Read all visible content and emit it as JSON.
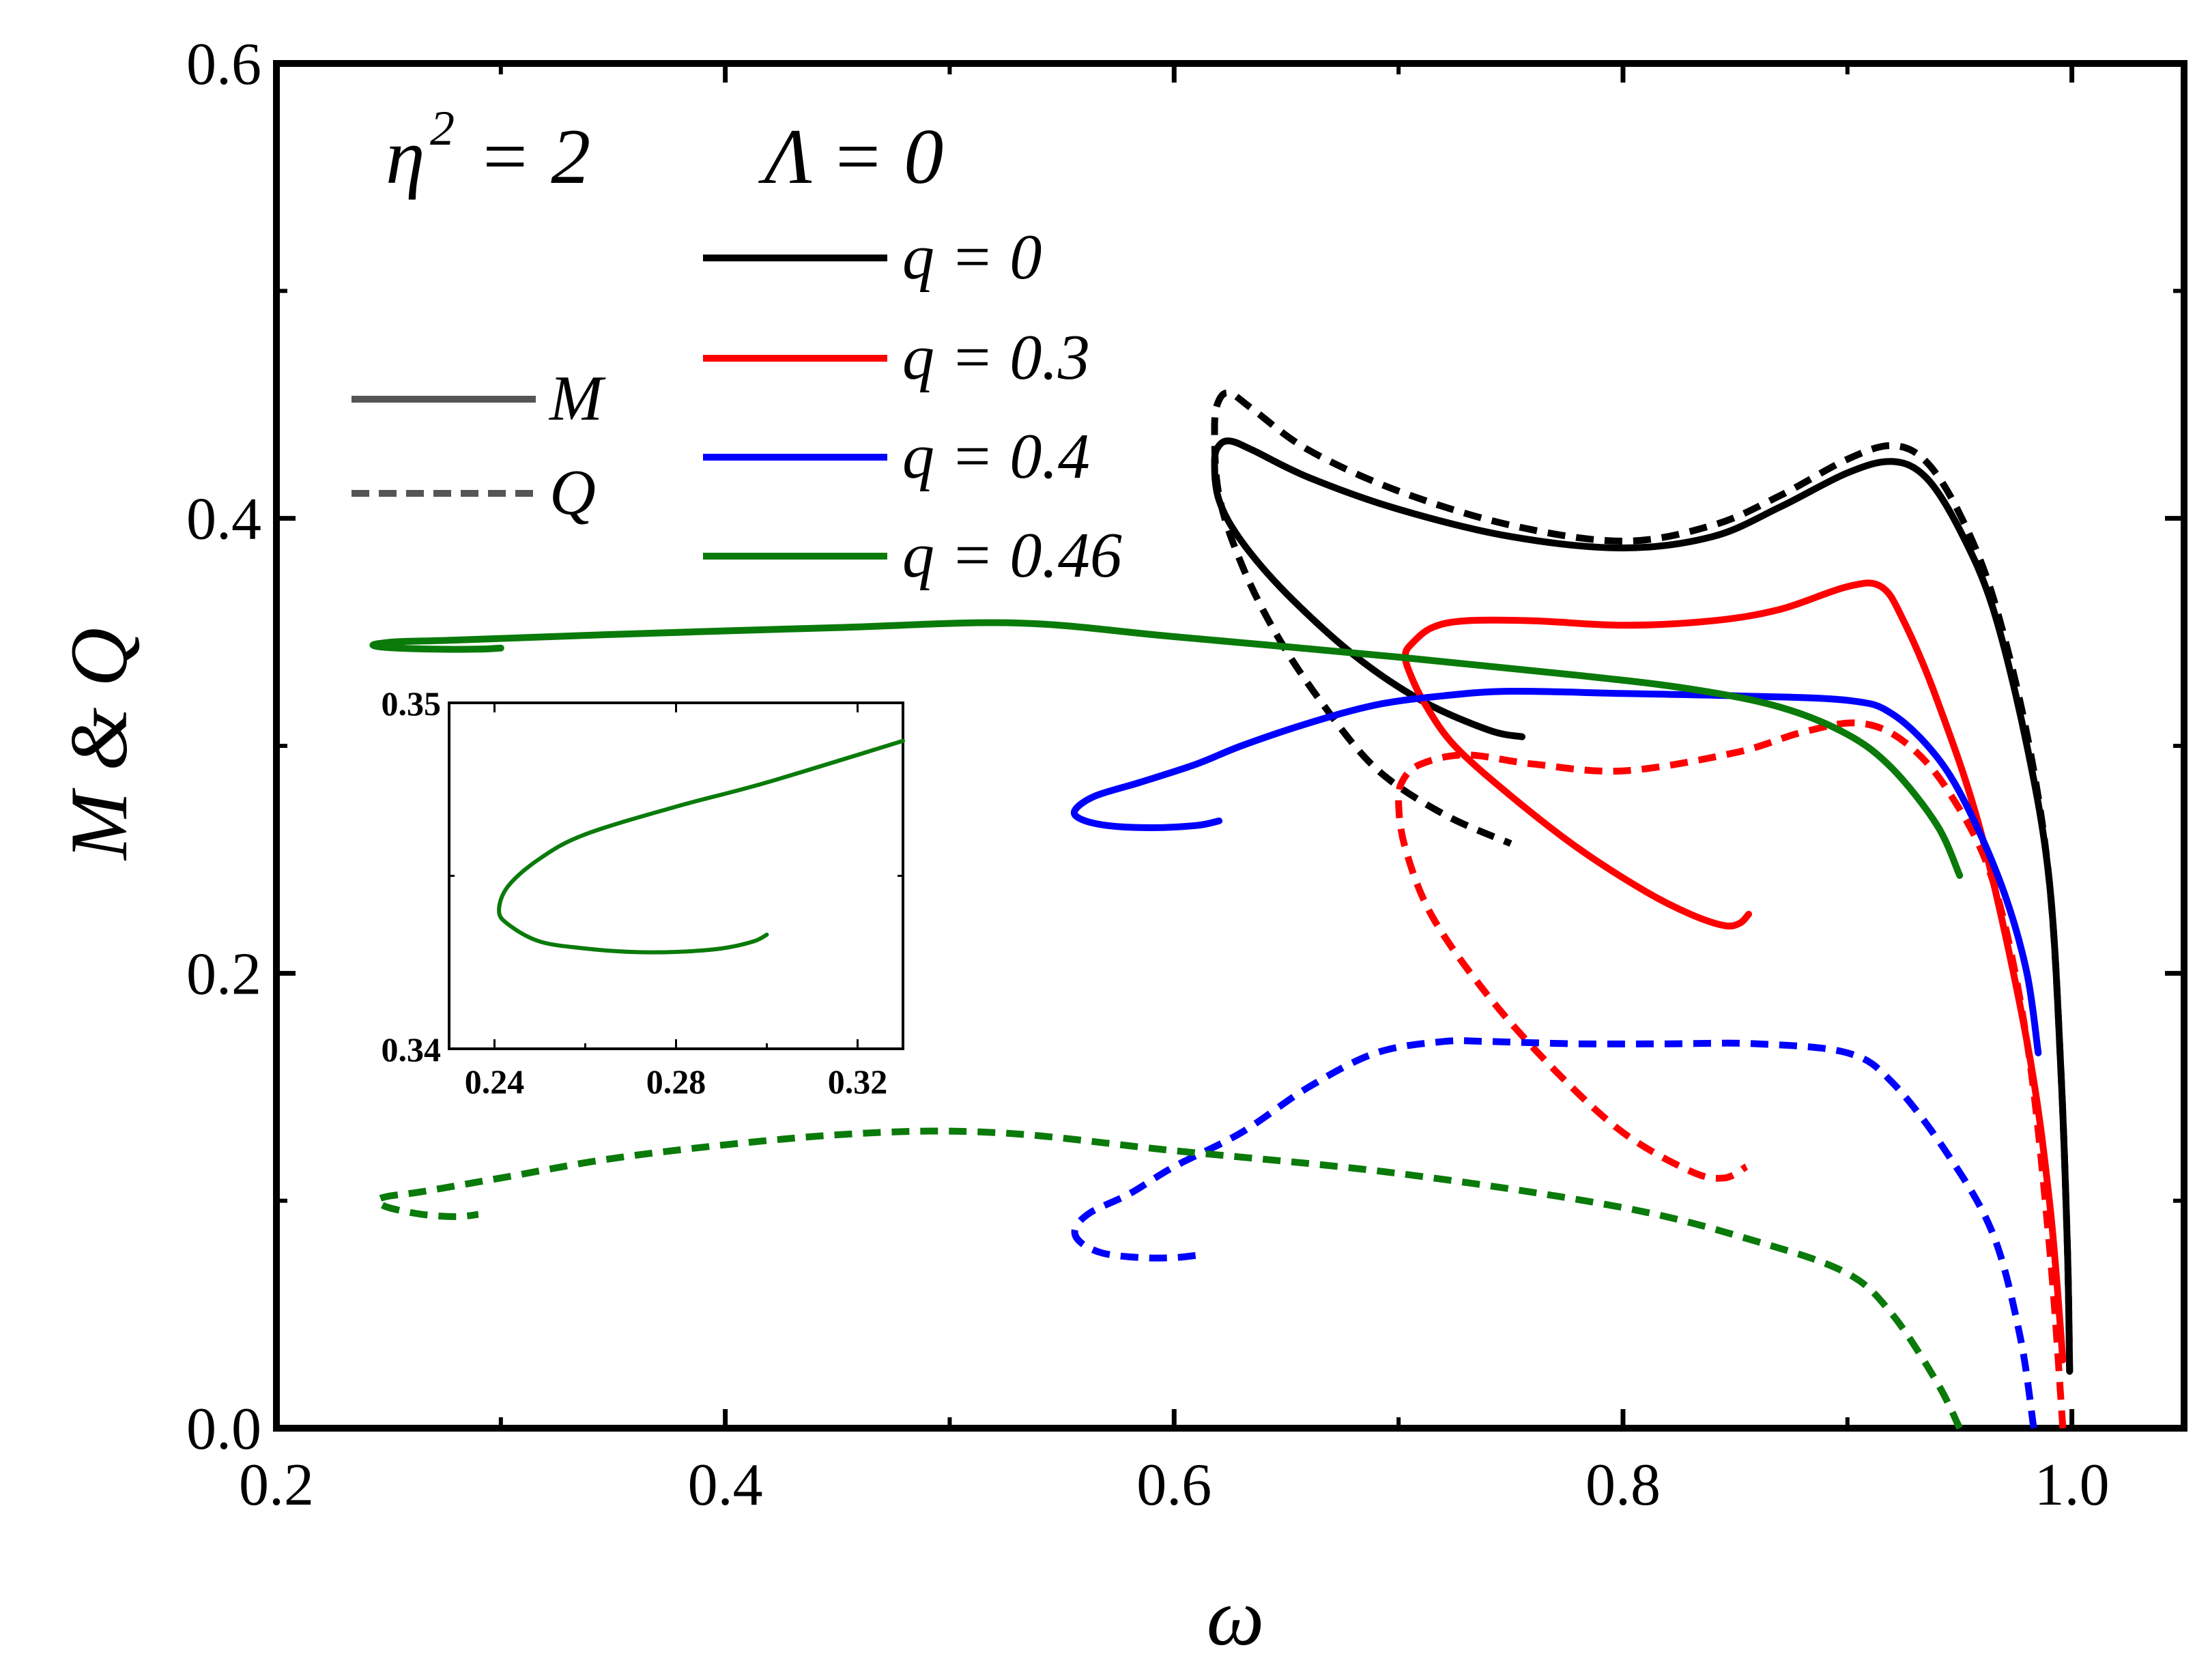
{
  "chart_data": [
    {
      "type": "line",
      "title": "",
      "xlabel": "ω",
      "ylabel": "M & Q",
      "xlim": [
        0.2,
        1.05
      ],
      "ylim": [
        0.0,
        0.6
      ],
      "xticks": [
        "0.2",
        "0.4",
        "0.6",
        "0.8",
        "1.0"
      ],
      "yticks": [
        "0.0",
        "0.2",
        "0.4",
        "0.6"
      ],
      "xtick_values": [
        0.2,
        0.4,
        0.6,
        0.8,
        1.0
      ],
      "ytick_values": [
        0.0,
        0.2,
        0.4,
        0.6
      ],
      "annotation": {
        "eta": "η",
        "eta_exp": "2",
        "eta_value": "= 2",
        "lambda": "Λ = 0"
      },
      "style_legend": [
        {
          "label": "M",
          "style": "solid"
        },
        {
          "label": "Q",
          "style": "dashed"
        }
      ],
      "legend": [
        {
          "label": "q = 0",
          "color": "#000000"
        },
        {
          "label": "q = 0.3",
          "color": "#ff0000"
        },
        {
          "label": "q = 0.4",
          "color": "#0000ff"
        },
        {
          "label": "q = 0.46",
          "color": "#0a7a0a"
        }
      ],
      "legend_style_color": "#555555",
      "series": [
        {
          "name": "M, q = 0",
          "q": "0",
          "quantity": "M",
          "color": "#000000",
          "dashed": false,
          "x": [
            0.999,
            0.998,
            0.995,
            0.99,
            0.98,
            0.965,
            0.95,
            0.935,
            0.92,
            0.9,
            0.87,
            0.84,
            0.8,
            0.75,
            0.7,
            0.66,
            0.635,
            0.625,
            0.62,
            0.618,
            0.62,
            0.63,
            0.65,
            0.68,
            0.71,
            0.74,
            0.755
          ],
          "y": [
            0.025,
            0.08,
            0.16,
            0.24,
            0.3,
            0.36,
            0.395,
            0.418,
            0.425,
            0.42,
            0.405,
            0.392,
            0.387,
            0.392,
            0.404,
            0.418,
            0.43,
            0.434,
            0.432,
            0.425,
            0.408,
            0.39,
            0.367,
            0.34,
            0.32,
            0.307,
            0.304
          ]
        },
        {
          "name": "Q, q = 0",
          "q": "0",
          "quantity": "Q",
          "color": "#000000",
          "dashed": true,
          "x": [
            0.999,
            0.998,
            0.995,
            0.99,
            0.98,
            0.965,
            0.95,
            0.935,
            0.92,
            0.9,
            0.87,
            0.84,
            0.8,
            0.75,
            0.7,
            0.66,
            0.635,
            0.625,
            0.62,
            0.618,
            0.62,
            0.63,
            0.645,
            0.665,
            0.69,
            0.72,
            0.75
          ],
          "y": [
            0.025,
            0.08,
            0.16,
            0.24,
            0.305,
            0.365,
            0.402,
            0.425,
            0.432,
            0.426,
            0.41,
            0.397,
            0.39,
            0.397,
            0.412,
            0.43,
            0.448,
            0.455,
            0.452,
            0.44,
            0.41,
            0.38,
            0.35,
            0.32,
            0.29,
            0.27,
            0.257
          ]
        },
        {
          "name": "M, q = 0.3",
          "q": "0.3",
          "quantity": "M",
          "color": "#ff0000",
          "dashed": false,
          "x": [
            0.996,
            0.99,
            0.98,
            0.96,
            0.94,
            0.925,
            0.915,
            0.9,
            0.87,
            0.84,
            0.8,
            0.76,
            0.73,
            0.715,
            0.706,
            0.703,
            0.705,
            0.712,
            0.725,
            0.75,
            0.78,
            0.81,
            0.83,
            0.845,
            0.852,
            0.856
          ],
          "y": [
            0.03,
            0.1,
            0.17,
            0.26,
            0.32,
            0.355,
            0.37,
            0.37,
            0.36,
            0.355,
            0.353,
            0.355,
            0.355,
            0.352,
            0.345,
            0.34,
            0.332,
            0.318,
            0.3,
            0.278,
            0.255,
            0.236,
            0.226,
            0.221,
            0.222,
            0.226
          ]
        },
        {
          "name": "Q, q = 0.3",
          "q": "0.3",
          "quantity": "Q",
          "color": "#ff0000",
          "dashed": true,
          "x": [
            0.996,
            0.99,
            0.98,
            0.965,
            0.945,
            0.925,
            0.905,
            0.88,
            0.85,
            0.8,
            0.76,
            0.73,
            0.71,
            0.702,
            0.7,
            0.703,
            0.715,
            0.74,
            0.77,
            0.8,
            0.83,
            0.845,
            0.855
          ],
          "y": [
            0.0,
            0.08,
            0.17,
            0.24,
            0.28,
            0.302,
            0.31,
            0.306,
            0.297,
            0.289,
            0.292,
            0.296,
            0.292,
            0.285,
            0.275,
            0.255,
            0.225,
            0.19,
            0.157,
            0.13,
            0.113,
            0.11,
            0.115
          ]
        },
        {
          "name": "M, q = 0.4",
          "q": "0.4",
          "quantity": "M",
          "color": "#0000ff",
          "dashed": false,
          "x": [
            0.985,
            0.98,
            0.97,
            0.955,
            0.94,
            0.92,
            0.9,
            0.85,
            0.8,
            0.75,
            0.72,
            0.69,
            0.66,
            0.63,
            0.61,
            0.585,
            0.565,
            0.556,
            0.558,
            0.57,
            0.59,
            0.61,
            0.62
          ],
          "y": [
            0.165,
            0.2,
            0.235,
            0.27,
            0.295,
            0.314,
            0.32,
            0.322,
            0.323,
            0.324,
            0.322,
            0.318,
            0.31,
            0.3,
            0.292,
            0.284,
            0.278,
            0.272,
            0.268,
            0.265,
            0.264,
            0.265,
            0.267
          ]
        },
        {
          "name": "Q, q = 0.4",
          "q": "0.4",
          "quantity": "Q",
          "color": "#0000ff",
          "dashed": true,
          "x": [
            0.983,
            0.977,
            0.965,
            0.945,
            0.92,
            0.9,
            0.86,
            0.82,
            0.78,
            0.74,
            0.72,
            0.69,
            0.66,
            0.63,
            0.6,
            0.58,
            0.563,
            0.556,
            0.558,
            0.568,
            0.585,
            0.6,
            0.61
          ],
          "y": [
            0.0,
            0.04,
            0.085,
            0.12,
            0.152,
            0.165,
            0.169,
            0.169,
            0.169,
            0.17,
            0.17,
            0.165,
            0.15,
            0.13,
            0.115,
            0.103,
            0.095,
            0.088,
            0.082,
            0.077,
            0.075,
            0.075,
            0.076
          ]
        },
        {
          "name": "M, q = 0.46",
          "q": "0.46",
          "quantity": "M",
          "color": "#0a7a0a",
          "dashed": false,
          "x": [
            0.95,
            0.94,
            0.92,
            0.9,
            0.87,
            0.83,
            0.78,
            0.7,
            0.6,
            0.53,
            0.45,
            0.35,
            0.28,
            0.26,
            0.25,
            0.243,
            0.25,
            0.27,
            0.29,
            0.3
          ],
          "y": [
            0.243,
            0.265,
            0.29,
            0.305,
            0.317,
            0.325,
            0.331,
            0.339,
            0.348,
            0.354,
            0.352,
            0.349,
            0.3465,
            0.346,
            0.3455,
            0.3443,
            0.3432,
            0.3425,
            0.3425,
            0.343
          ]
        },
        {
          "name": "Q, q = 0.46",
          "q": "0.46",
          "quantity": "Q",
          "color": "#0a7a0a",
          "dashed": true,
          "x": [
            0.95,
            0.94,
            0.92,
            0.9,
            0.86,
            0.8,
            0.7,
            0.6,
            0.52,
            0.45,
            0.36,
            0.3,
            0.265,
            0.25,
            0.245,
            0.25,
            0.265,
            0.28,
            0.29
          ],
          "y": [
            0.0,
            0.02,
            0.05,
            0.068,
            0.082,
            0.097,
            0.112,
            0.122,
            0.13,
            0.129,
            0.12,
            0.11,
            0.104,
            0.102,
            0.1,
            0.097,
            0.094,
            0.093,
            0.094
          ]
        }
      ]
    },
    {
      "type": "line",
      "title": "inset",
      "xlim": [
        0.23,
        0.33
      ],
      "ylim": [
        0.34,
        0.35
      ],
      "xticks": [
        "0.24",
        "0.28",
        "0.32"
      ],
      "yticks": [
        "0.34",
        "0.35"
      ],
      "xtick_values": [
        0.24,
        0.28,
        0.32
      ],
      "ytick_values": [
        0.34,
        0.35
      ],
      "series": [
        {
          "name": "M, q = 0.46 (zoom)",
          "color": "#0a7a0a",
          "x": [
            0.33,
            0.3,
            0.28,
            0.26,
            0.25,
            0.243,
            0.241,
            0.243,
            0.25,
            0.26,
            0.27,
            0.28,
            0.29,
            0.297,
            0.3
          ],
          "y": [
            0.3489,
            0.3477,
            0.347,
            0.3462,
            0.3455,
            0.3447,
            0.344,
            0.3436,
            0.3431,
            0.3429,
            0.3428,
            0.3428,
            0.3429,
            0.3431,
            0.3433
          ]
        }
      ]
    }
  ]
}
